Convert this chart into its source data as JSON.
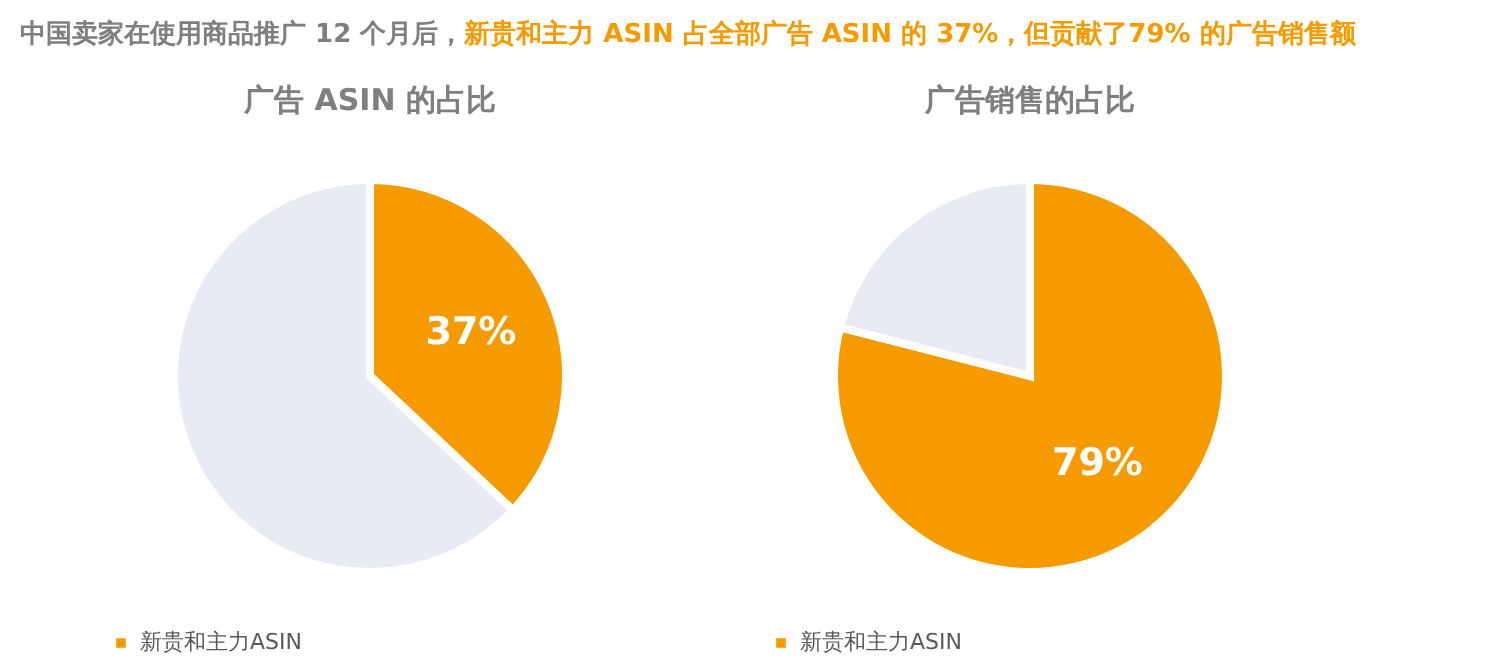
{
  "chart_data": [
    {
      "type": "pie",
      "title": "广告 ASIN 的占比",
      "annotations": [
        "中国卖家在使用商品推广 12 个月后，",
        "新贵和主力 ASIN 占全部广告 ASIN 的 37%，但贡献了79% 的广告销售额"
      ],
      "categories": [
        "新贵和主力ASIN",
        null
      ],
      "values": [
        37,
        63
      ],
      "colors": [
        "#f59b00",
        "#e8ebf3"
      ],
      "value_labels": [
        "37%",
        null
      ],
      "legend": "bottom"
    },
    {
      "type": "pie",
      "title": "广告销售的占比",
      "categories": [
        "新贵和主力ASIN",
        null
      ],
      "values": [
        79,
        21
      ],
      "colors": [
        "#f59b00",
        "#e8ebf3"
      ],
      "value_labels": [
        "79%",
        null
      ],
      "legend": "bottom"
    }
  ]
}
